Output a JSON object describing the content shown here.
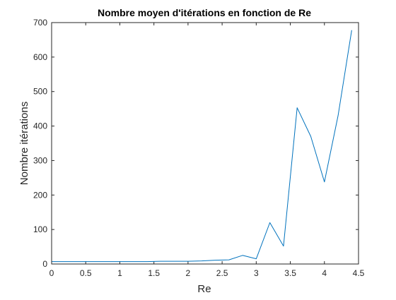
{
  "chart_data": {
    "type": "line",
    "title": "Nombre moyen d'itérations en fonction de Re",
    "xlabel": "Re",
    "ylabel": "Nombre itérations",
    "xlim": [
      0,
      4.5
    ],
    "ylim": [
      0,
      700
    ],
    "xticks": [
      0,
      0.5,
      1,
      1.5,
      2,
      2.5,
      3,
      3.5,
      4,
      4.5
    ],
    "xtick_labels": [
      "0",
      "0.5",
      "1",
      "1.5",
      "2",
      "2.5",
      "3",
      "3.5",
      "4",
      "4.5"
    ],
    "yticks": [
      0,
      100,
      200,
      300,
      400,
      500,
      600,
      700
    ],
    "ytick_labels": [
      "0",
      "100",
      "200",
      "300",
      "400",
      "500",
      "600",
      "700"
    ],
    "grid": false,
    "series": [
      {
        "color": "#0072bd",
        "x": [
          0,
          0.2,
          0.4,
          0.6,
          0.8,
          1.0,
          1.2,
          1.4,
          1.6,
          1.8,
          2.0,
          2.2,
          2.4,
          2.6,
          2.8,
          3.0,
          3.2,
          3.4,
          3.6,
          3.8,
          4.0,
          4.2,
          4.4
        ],
        "y": [
          7,
          7,
          7,
          7,
          7,
          7,
          7,
          7,
          8,
          8,
          8,
          9,
          11,
          12,
          25,
          15,
          120,
          52,
          453,
          370,
          238,
          430,
          678
        ]
      }
    ]
  }
}
